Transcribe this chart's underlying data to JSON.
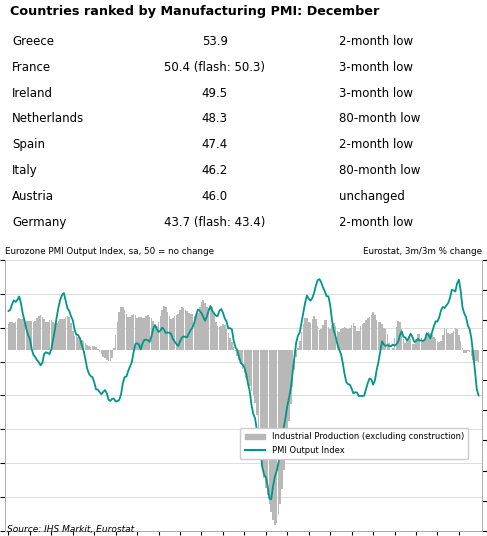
{
  "title": "Countries ranked by Manufacturing PMI: December",
  "table_rows": [
    [
      "Greece",
      "53.9",
      "2-month low"
    ],
    [
      "France",
      "50.4 (flash: 50.3)",
      "3-month low"
    ],
    [
      "Ireland",
      "49.5",
      "3-month low"
    ],
    [
      "Netherlands",
      "48.3",
      "80-month low"
    ],
    [
      "Spain",
      "47.4",
      "2-month low"
    ],
    [
      "Italy",
      "46.2",
      "80-month low"
    ],
    [
      "Austria",
      "46.0",
      "unchanged"
    ],
    [
      "Germany",
      "43.7 (flash: 43.4)",
      "2-month low"
    ]
  ],
  "left_axis_label": "Eurozone PMI Output Index, sa, 50 = no change",
  "right_axis_label": "Eurostat, 3m/3m % change",
  "ylim_left": [
    25,
    65
  ],
  "ylim_right": [
    -6,
    3
  ],
  "yticks_left": [
    25,
    30,
    35,
    40,
    45,
    50,
    55,
    60,
    65
  ],
  "yticks_right": [
    -6,
    -5,
    -4,
    -3,
    -2,
    -1,
    0,
    1,
    2,
    3
  ],
  "source": "Source: IHS Markit, Eurostat",
  "bar_color": "#b8b8b8",
  "line_color": "#009688",
  "background_color": "#ffffff",
  "legend_bar": "Industrial Production (excluding construction)",
  "legend_line": "PMI Output Index"
}
